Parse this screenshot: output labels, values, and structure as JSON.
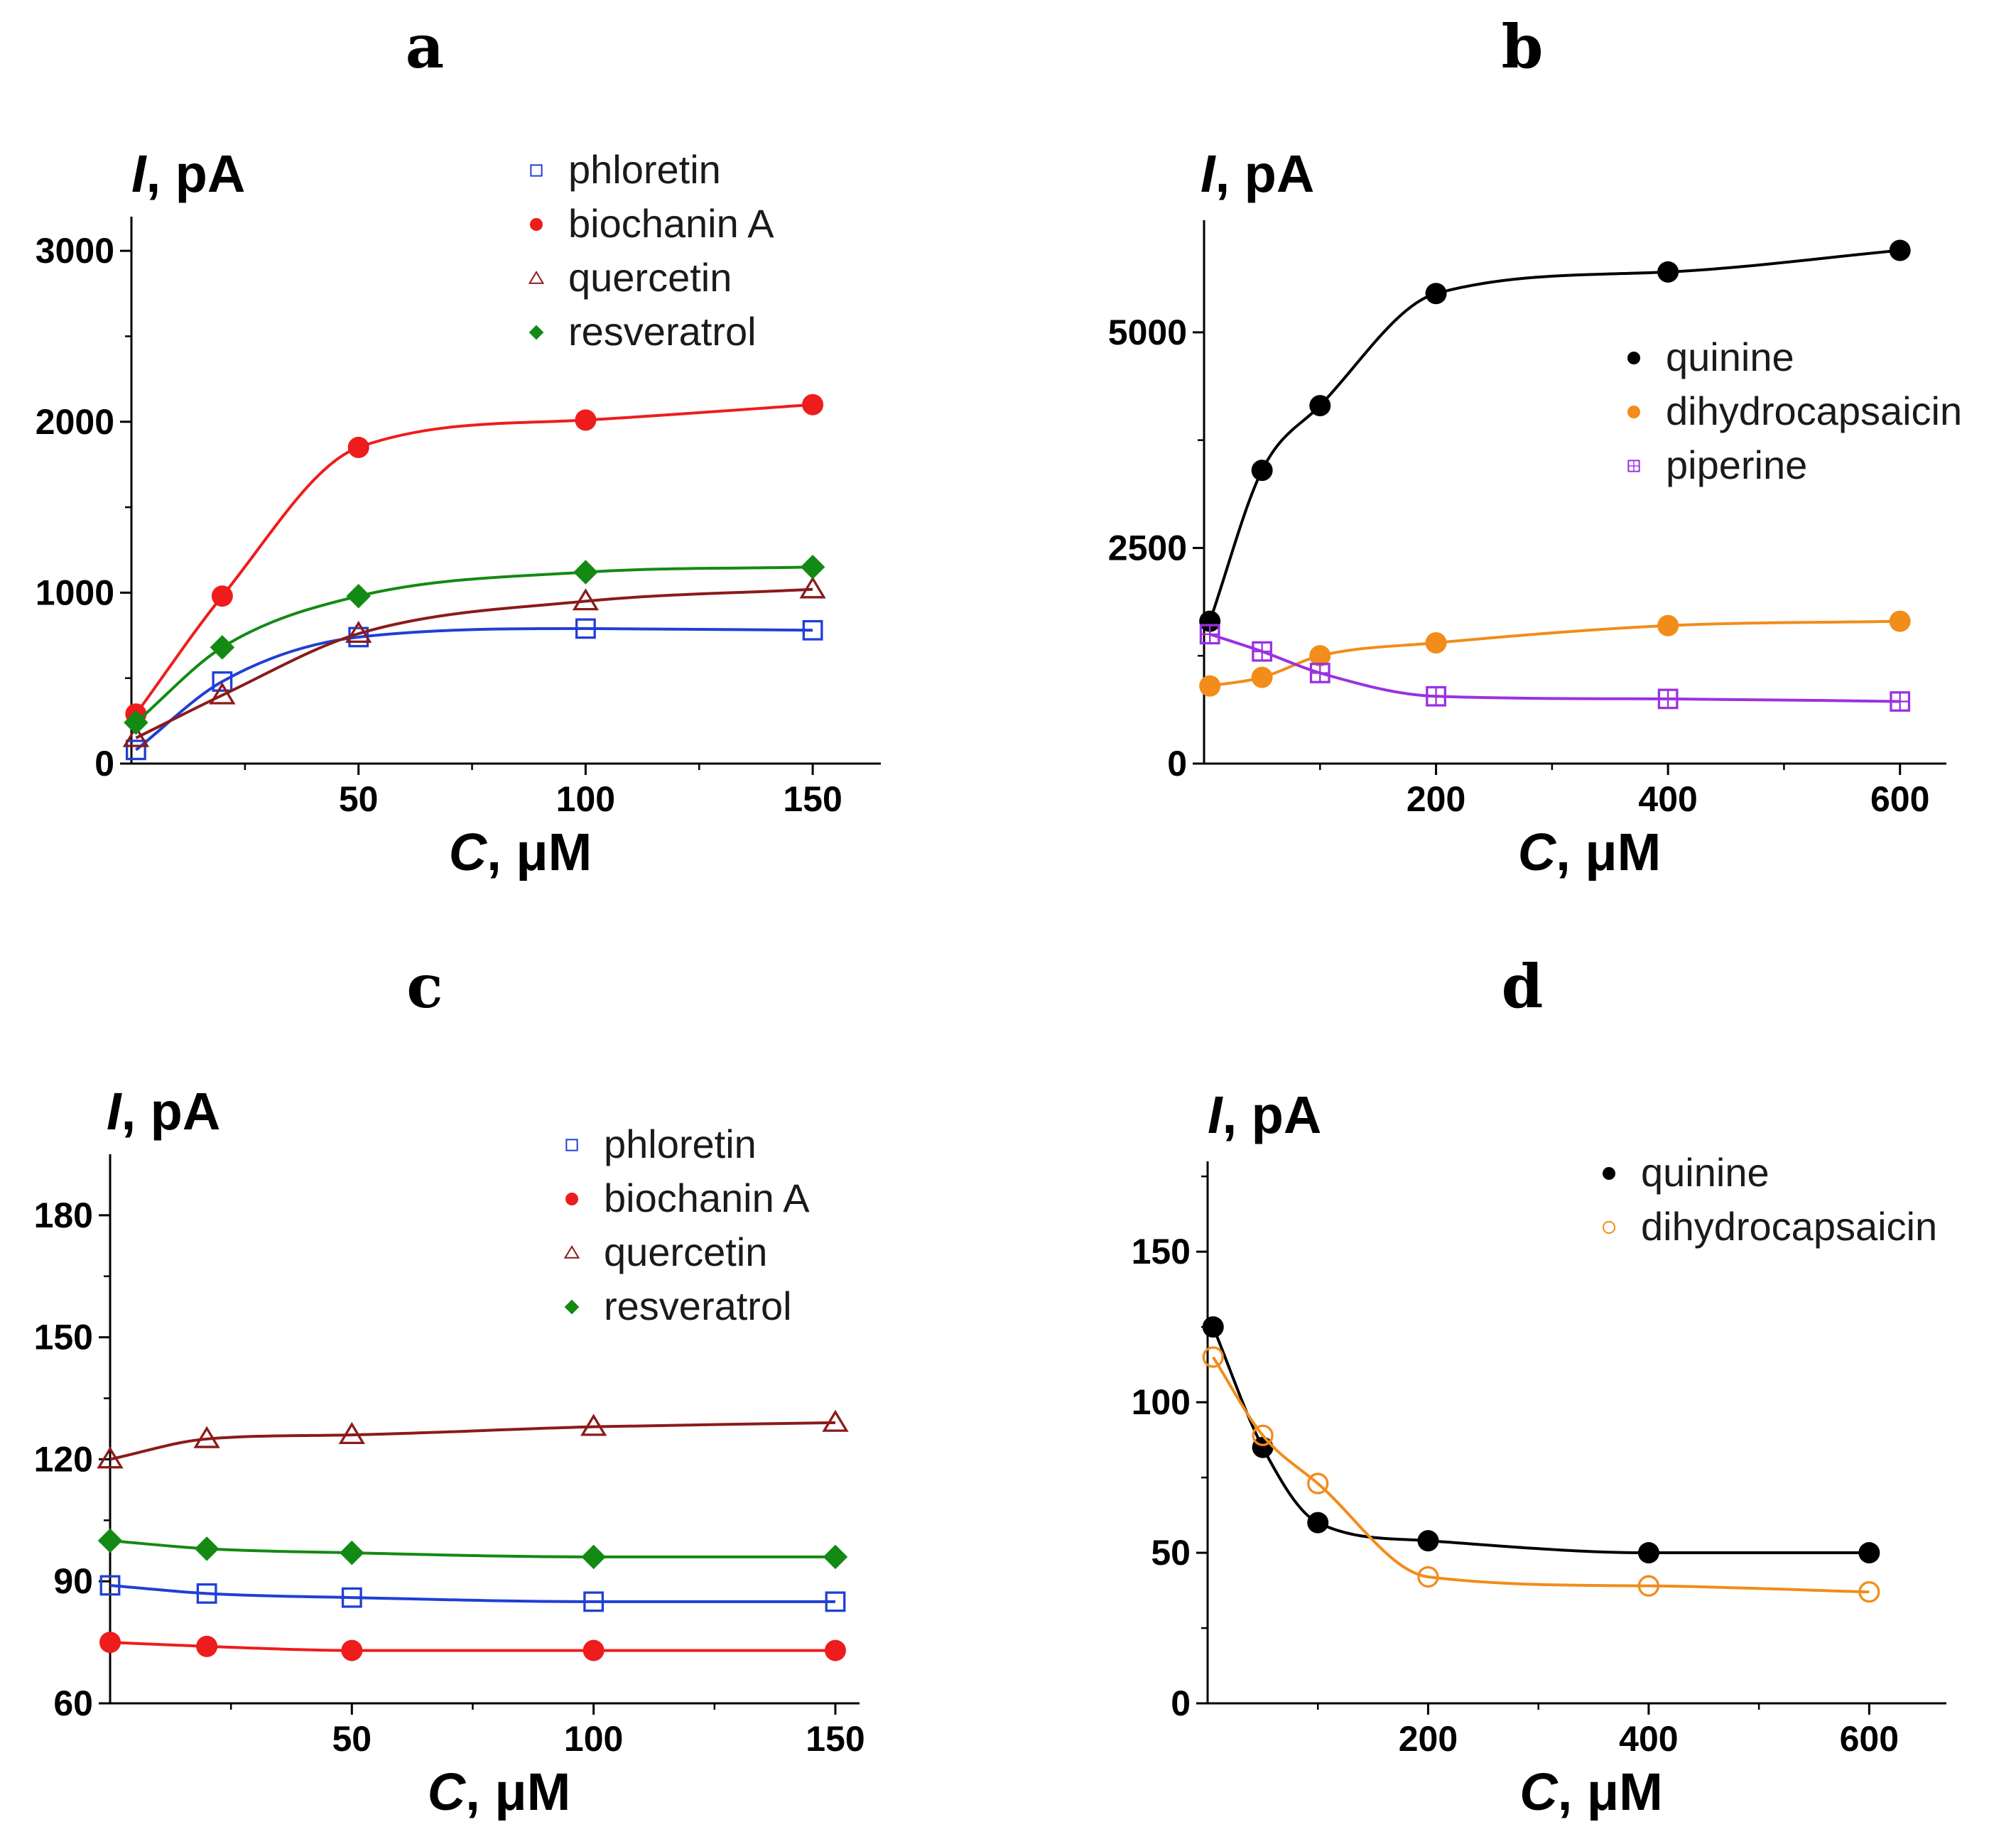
{
  "chart_data": [
    {
      "type": "scatter",
      "panel": "a",
      "ylabel": {
        "var": "I",
        "unit": ", pA"
      },
      "xlabel": {
        "var": "C",
        "unit": ", μM"
      },
      "xlim": [
        0,
        165
      ],
      "ylim": [
        0,
        3200
      ],
      "xticks": [
        50,
        100,
        150
      ],
      "xminor": [
        25,
        75,
        125
      ],
      "yticks": [
        0,
        1000,
        2000,
        3000
      ],
      "yminor": [
        500,
        1500,
        2500
      ],
      "legend_position": "top-right",
      "series": [
        {
          "name": "phloretin",
          "color": "#1f3fd6",
          "marker": "open-square",
          "fit": true,
          "x": [
            1,
            20,
            50,
            100,
            150
          ],
          "y": [
            80,
            480,
            740,
            790,
            780
          ]
        },
        {
          "name": "biochanin A",
          "color": "#ee1c1c",
          "marker": "filled-circle",
          "fit": true,
          "x": [
            1,
            20,
            50,
            100,
            150
          ],
          "y": [
            290,
            980,
            1850,
            2010,
            2100
          ]
        },
        {
          "name": "quercetin",
          "color": "#8b1a1a",
          "marker": "open-triangle",
          "fit": true,
          "x": [
            1,
            20,
            50,
            100,
            150
          ],
          "y": [
            150,
            400,
            760,
            950,
            1020
          ]
        },
        {
          "name": "resveratrol",
          "color": "#138a13",
          "marker": "filled-diamond",
          "fit": true,
          "x": [
            1,
            20,
            50,
            100,
            150
          ],
          "y": [
            240,
            680,
            980,
            1120,
            1150
          ]
        }
      ]
    },
    {
      "type": "scatter",
      "panel": "b",
      "ylabel": {
        "var": "I",
        "unit": ", pA"
      },
      "xlabel": {
        "var": "C",
        "unit": ", μM"
      },
      "xlim": [
        0,
        640
      ],
      "ylim": [
        0,
        6300
      ],
      "xticks": [
        200,
        400,
        600
      ],
      "xminor": [
        100,
        300,
        500
      ],
      "yticks": [
        0,
        2500,
        5000
      ],
      "yminor": [
        1250,
        3750
      ],
      "legend_position": "center-right",
      "series": [
        {
          "name": "quinine",
          "color": "#000000",
          "marker": "filled-circle",
          "fit": true,
          "x": [
            5,
            50,
            100,
            200,
            400,
            600
          ],
          "y": [
            1650,
            3400,
            4150,
            5450,
            5700,
            5950
          ]
        },
        {
          "name": "dihydrocapsaicin",
          "color": "#f28c1a",
          "marker": "filled-circle",
          "fit": true,
          "x": [
            5,
            50,
            100,
            200,
            400,
            600
          ],
          "y": [
            900,
            1000,
            1250,
            1400,
            1600,
            1650
          ]
        },
        {
          "name": "piperine",
          "color": "#9b30e0",
          "marker": "hatched-square",
          "fit": true,
          "x": [
            5,
            50,
            100,
            200,
            400,
            600
          ],
          "y": [
            1500,
            1300,
            1050,
            780,
            750,
            720
          ]
        }
      ]
    },
    {
      "type": "scatter",
      "panel": "c",
      "ylabel": {
        "var": "I",
        "unit": ", pA"
      },
      "xlabel": {
        "var": "C",
        "unit": ", μM"
      },
      "xlim": [
        0,
        155
      ],
      "ylim": [
        60,
        195
      ],
      "xticks": [
        50,
        100,
        150
      ],
      "xminor": [
        25,
        75,
        125
      ],
      "yticks": [
        60,
        90,
        120,
        150,
        180
      ],
      "yminor": [
        75,
        105,
        135,
        165
      ],
      "legend_position": "top-right",
      "series": [
        {
          "name": "phloretin",
          "color": "#1f3fd6",
          "marker": "open-square",
          "fit": true,
          "x": [
            0,
            20,
            50,
            100,
            150
          ],
          "y": [
            89,
            87,
            86,
            85,
            85
          ]
        },
        {
          "name": "biochanin A",
          "color": "#ee1c1c",
          "marker": "filled-circle",
          "fit": true,
          "x": [
            0,
            20,
            50,
            100,
            150
          ],
          "y": [
            75,
            74,
            73,
            73,
            73
          ]
        },
        {
          "name": "quercetin",
          "color": "#8b1a1a",
          "marker": "open-triangle",
          "fit": true,
          "x": [
            0,
            20,
            50,
            100,
            150
          ],
          "y": [
            120,
            125,
            126,
            128,
            129
          ]
        },
        {
          "name": "resveratrol",
          "color": "#138a13",
          "marker": "filled-diamond",
          "fit": true,
          "x": [
            0,
            20,
            50,
            100,
            150
          ],
          "y": [
            100,
            98,
            97,
            96,
            96
          ]
        }
      ]
    },
    {
      "type": "scatter",
      "panel": "d",
      "ylabel": {
        "var": "I",
        "unit": ", pA"
      },
      "xlabel": {
        "var": "C",
        "unit": ", μM"
      },
      "xlim": [
        0,
        670
      ],
      "ylim": [
        0,
        180
      ],
      "xticks": [
        200,
        400,
        600
      ],
      "xminor": [
        100,
        300,
        500
      ],
      "yticks": [
        0,
        50,
        100,
        150
      ],
      "yminor": [
        25,
        75,
        125,
        175
      ],
      "legend_position": "top-right",
      "series": [
        {
          "name": "quinine",
          "color": "#000000",
          "marker": "filled-circle",
          "fit": true,
          "x": [
            5,
            50,
            100,
            200,
            400,
            600
          ],
          "y": [
            125,
            85,
            60,
            54,
            50,
            50
          ]
        },
        {
          "name": "dihydrocapsaicin",
          "color": "#f28c1a",
          "marker": "open-circle",
          "fit": true,
          "x": [
            5,
            50,
            100,
            200,
            400,
            600
          ],
          "y": [
            115,
            89,
            73,
            42,
            39,
            37
          ]
        }
      ]
    }
  ]
}
